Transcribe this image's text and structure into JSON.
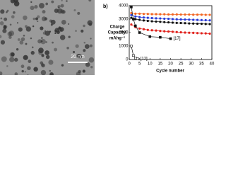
{
  "image": {
    "scale_label": "20 nm"
  },
  "chart_data": {
    "type": "line",
    "title": "b)",
    "ylabel": [
      "Charge",
      "Capacity/",
      "mAhg⁻¹"
    ],
    "xlabel": "Cycle number",
    "xlim": [
      0,
      40
    ],
    "xticks": [
      0,
      5,
      10,
      15,
      20,
      25,
      30,
      35,
      40
    ],
    "ylim": [
      0,
      4000
    ],
    "yticks": [
      0,
      1000,
      2000,
      3000,
      4000
    ],
    "series": [
      {
        "name": null,
        "color": "#f26522",
        "marker": "circle",
        "x": [
          1,
          3,
          5,
          7,
          9,
          11,
          13,
          15,
          17,
          19,
          21,
          23,
          25,
          27,
          29,
          31,
          33,
          35,
          37,
          39
        ],
        "values": [
          3450,
          3400,
          3400,
          3380,
          3380,
          3370,
          3370,
          3360,
          3360,
          3350,
          3350,
          3350,
          3340,
          3340,
          3340,
          3330,
          3330,
          3330,
          3320,
          3320
        ]
      },
      {
        "name": null,
        "color": "#2a3bd6",
        "marker": "circle",
        "x": [
          1,
          3,
          5,
          7,
          9,
          11,
          13,
          15,
          17,
          19,
          21,
          23,
          25,
          27,
          29,
          31,
          33,
          35,
          37,
          39
        ],
        "values": [
          3300,
          3200,
          3150,
          3120,
          3100,
          3080,
          3060,
          3050,
          3030,
          3020,
          3000,
          2990,
          2980,
          2970,
          2960,
          2950,
          2940,
          2930,
          2920,
          2910
        ]
      },
      {
        "name": null,
        "color": "#111111",
        "marker": "circle",
        "x": [
          1,
          3,
          5,
          7,
          9,
          11,
          13,
          15,
          17,
          19,
          21,
          23,
          25,
          27,
          29,
          31,
          33,
          35,
          37,
          39
        ],
        "values": [
          3100,
          3000,
          2950,
          2900,
          2870,
          2840,
          2820,
          2800,
          2780,
          2760,
          2740,
          2720,
          2710,
          2700,
          2680,
          2670,
          2660,
          2650,
          2640,
          2630
        ]
      },
      {
        "name": null,
        "color": "#e0201b",
        "marker": "circle",
        "x": [
          1,
          3,
          5,
          7,
          9,
          11,
          13,
          15,
          17,
          19,
          21,
          23,
          25,
          27,
          29,
          31,
          33,
          35,
          37,
          39
        ],
        "values": [
          2600,
          2400,
          2300,
          2250,
          2200,
          2170,
          2150,
          2120,
          2100,
          2080,
          2060,
          2040,
          2020,
          2000,
          1990,
          1980,
          1960,
          1950,
          1940,
          1920
        ]
      },
      {
        "name": "[17]",
        "color": "#111111",
        "marker": "square",
        "x": [
          1,
          2,
          3,
          5,
          10,
          15,
          20
        ],
        "values": [
          3900,
          3000,
          2500,
          2000,
          1700,
          1650,
          1550
        ]
      },
      {
        "name": "[12]",
        "color": "#111111",
        "marker": "open-square",
        "x": [
          1,
          2,
          3,
          4
        ],
        "values": [
          1000,
          300,
          100,
          50
        ]
      }
    ]
  }
}
